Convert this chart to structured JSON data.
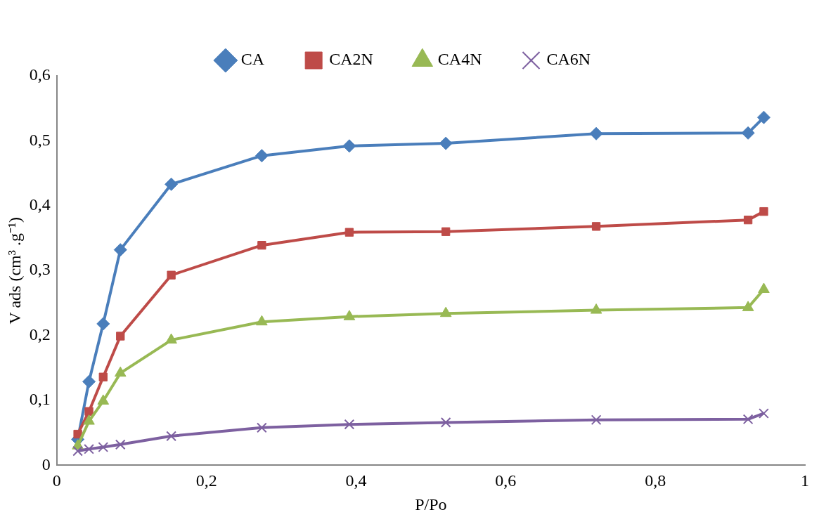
{
  "chart_data": {
    "type": "line",
    "xlabel": "P/Po",
    "ylabel": "V ads (cm³ .g⁻¹)",
    "x": [
      0.028,
      0.043,
      0.062,
      0.085,
      0.153,
      0.274,
      0.391,
      0.52,
      0.721,
      0.924,
      0.945
    ],
    "series": [
      {
        "name": "CA",
        "color": "#4a7ebb",
        "marker": "diamond",
        "values": [
          0.04,
          0.129,
          0.218,
          0.332,
          0.433,
          0.477,
          0.492,
          0.496,
          0.511,
          0.512,
          0.536
        ]
      },
      {
        "name": "CA2N",
        "color": "#be4b48",
        "marker": "square",
        "values": [
          0.048,
          0.083,
          0.136,
          0.199,
          0.293,
          0.339,
          0.359,
          0.36,
          0.368,
          0.378,
          0.391
        ]
      },
      {
        "name": "CA4N",
        "color": "#98b954",
        "marker": "triangle",
        "values": [
          0.03,
          0.068,
          0.099,
          0.142,
          0.193,
          0.221,
          0.229,
          0.234,
          0.239,
          0.243,
          0.271
        ]
      },
      {
        "name": "CA6N",
        "color": "#7d60a0",
        "marker": "cross",
        "values": [
          0.022,
          0.025,
          0.028,
          0.032,
          0.045,
          0.058,
          0.063,
          0.066,
          0.07,
          0.071,
          0.08
        ]
      }
    ],
    "xlim": [
      0,
      1
    ],
    "xticks": [
      0,
      {
        "value": 0.2,
        "label": "0,2"
      },
      {
        "value": 0.4,
        "label": "0,4"
      },
      {
        "value": 0.6,
        "label": "0,6"
      },
      {
        "value": 0.8,
        "label": "0,8"
      },
      1
    ],
    "ylim": [
      0,
      0.6
    ],
    "yticks": [
      0,
      {
        "value": 0.1,
        "label": "0,1"
      },
      {
        "value": 0.2,
        "label": "0,2"
      },
      {
        "value": 0.3,
        "label": "0,3"
      },
      {
        "value": 0.4,
        "label": "0,4"
      },
      {
        "value": 0.5,
        "label": "0,5"
      },
      {
        "value": 0.6,
        "label": "0,6"
      }
    ],
    "grid": false,
    "legend": "top",
    "line_style": "solid"
  }
}
